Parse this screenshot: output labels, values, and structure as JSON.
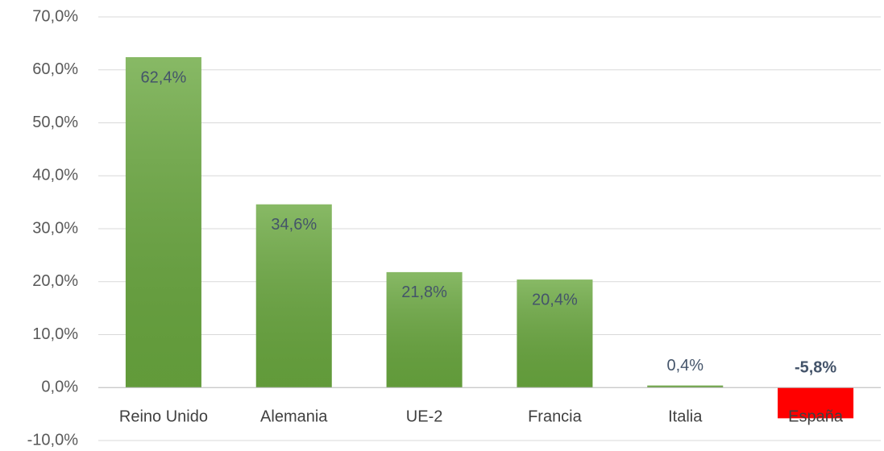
{
  "chart_data": {
    "type": "bar",
    "categories": [
      "Reino Unido",
      "Alemania",
      "UE-2",
      "Francia",
      "Italia",
      "España"
    ],
    "values": [
      62.4,
      34.6,
      21.8,
      20.4,
      0.4,
      -5.8
    ],
    "value_labels": [
      "62,4%",
      "34,6%",
      "21,8%",
      "20,4%",
      "0,4%",
      "-5,8%"
    ],
    "colors": [
      "#6aa83f",
      "#6aa83f",
      "#6aa83f",
      "#6aa83f",
      "#6aa83f",
      "#ff0000"
    ],
    "ylim": [
      -10,
      70
    ],
    "yticks": [
      {
        "value": -10,
        "label": "-10,0%"
      },
      {
        "value": 0,
        "label": "0,0%"
      },
      {
        "value": 10,
        "label": "10,0%"
      },
      {
        "value": 20,
        "label": "20,0%"
      },
      {
        "value": 30,
        "label": "30,0%"
      },
      {
        "value": 40,
        "label": "40,0%"
      },
      {
        "value": 50,
        "label": "50,0%"
      },
      {
        "value": 60,
        "label": "60,0%"
      },
      {
        "value": 70,
        "label": "70,0%"
      }
    ],
    "grid": true
  }
}
